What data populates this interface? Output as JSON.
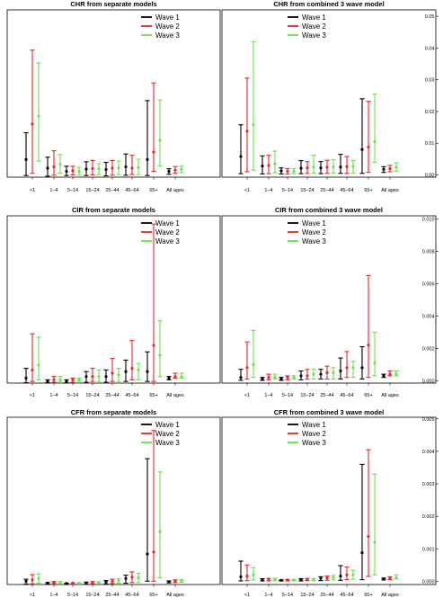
{
  "colors": {
    "wave1": "#000000",
    "wave2": "#e8262b",
    "wave3": "#6ee24a"
  },
  "chart_data": [
    {
      "type": "errorbar",
      "title": "CHR from separate models",
      "categories": [
        "<1",
        "1–4",
        "5–14",
        "15–24",
        "25–44",
        "45–64",
        "65+",
        "All ages"
      ],
      "ylim": [
        0,
        0.052
      ],
      "yticks": [],
      "legend": "top-right",
      "series": [
        {
          "name": "Wave 1",
          "est": [
            0.0055,
            0.0028,
            0.0018,
            0.0025,
            0.0024,
            0.0032,
            0.0055,
            0.0018
          ],
          "lo": [
            0.0005,
            0.0003,
            0.0005,
            0.0005,
            0.0004,
            0.0006,
            0.0005,
            0.0009
          ],
          "hi": [
            0.0138,
            0.0062,
            0.0034,
            0.0048,
            0.0046,
            0.0072,
            0.0238,
            0.0026
          ]
        },
        {
          "name": "Wave 2",
          "est": [
            0.0165,
            0.0032,
            0.002,
            0.0027,
            0.0028,
            0.0028,
            0.0078,
            0.0022
          ],
          "lo": [
            0.0012,
            0.0006,
            0.0007,
            0.0007,
            0.0006,
            0.0008,
            0.0018,
            0.0012
          ],
          "hi": [
            0.0395,
            0.0082,
            0.0034,
            0.0052,
            0.0052,
            0.0068,
            0.0293,
            0.0033
          ]
        },
        {
          "name": "Wave 3",
          "est": [
            0.019,
            0.004,
            0.0018,
            0.0026,
            0.0029,
            0.003,
            0.0115,
            0.0024
          ],
          "lo": [
            0.005,
            0.0012,
            0.0006,
            0.0008,
            0.0008,
            0.0008,
            0.0035,
            0.0014
          ],
          "hi": [
            0.0355,
            0.007,
            0.003,
            0.0042,
            0.005,
            0.0056,
            0.024,
            0.0034
          ]
        }
      ]
    },
    {
      "type": "errorbar",
      "title": "CHR from combined 3 wave model",
      "categories": [
        "<1",
        "1–4",
        "5–14",
        "15–24",
        "25–44",
        "45–64",
        "65+",
        "All ages"
      ],
      "ylim": [
        -0.0007,
        0.052
      ],
      "yticks": [
        "0.00",
        "0.01",
        "0.02",
        "0.03",
        "0.04",
        "0.05"
      ],
      "yticks_values": [
        0.0,
        0.01,
        0.02,
        0.03,
        0.04,
        0.05
      ],
      "legend": "top-left",
      "series": [
        {
          "name": "Wave 1",
          "est": [
            0.0058,
            0.0028,
            0.0013,
            0.0021,
            0.0022,
            0.0025,
            0.008,
            0.0018
          ],
          "lo": [
            0.0004,
            0.0003,
            0.0003,
            0.0004,
            0.0004,
            0.0005,
            0.0005,
            0.0008
          ],
          "hi": [
            0.0158,
            0.006,
            0.0022,
            0.0045,
            0.0042,
            0.0065,
            0.024,
            0.0026
          ]
        },
        {
          "name": "Wave 2",
          "est": [
            0.0138,
            0.003,
            0.0012,
            0.0022,
            0.0024,
            0.0026,
            0.0088,
            0.002
          ],
          "lo": [
            0.001,
            0.0004,
            0.0003,
            0.0005,
            0.0005,
            0.0005,
            0.0008,
            0.001
          ],
          "hi": [
            0.0305,
            0.0062,
            0.002,
            0.0042,
            0.0046,
            0.0058,
            0.0232,
            0.003
          ]
        },
        {
          "name": "Wave 3",
          "est": [
            0.0158,
            0.0035,
            0.0012,
            0.0025,
            0.0025,
            0.0027,
            0.0105,
            0.0024
          ],
          "lo": [
            0.0015,
            0.0007,
            0.0004,
            0.0006,
            0.0006,
            0.0006,
            0.004,
            0.0012
          ],
          "hi": [
            0.042,
            0.0075,
            0.002,
            0.0062,
            0.0048,
            0.0045,
            0.0255,
            0.0038
          ]
        }
      ]
    },
    {
      "type": "errorbar",
      "title": "CIR from separate models",
      "categories": [
        "<1",
        "1–4",
        "5–14",
        "15–24",
        "25–44",
        "45–64",
        "65+",
        "All ages"
      ],
      "ylim": [
        0,
        0.0102
      ],
      "yticks": [],
      "legend": "top-right",
      "series": [
        {
          "name": "Wave 1",
          "est": [
            0.0003,
            0.0001,
            0.0001,
            0.0004,
            0.0004,
            0.0007,
            0.0007,
            0.0003
          ],
          "lo": [
            2e-05,
            2e-05,
            2e-05,
            5e-05,
            5e-05,
            0.0001,
            0.0001,
            0.0002
          ],
          "hi": [
            0.0009,
            0.0002,
            0.0002,
            0.0007,
            0.0008,
            0.0014,
            0.0019,
            0.0004
          ]
        },
        {
          "name": "Wave 2",
          "est": [
            0.0008,
            0.0002,
            0.0002,
            0.0004,
            0.0006,
            0.0009,
            0.0023,
            0.0004
          ],
          "lo": [
            0.0001,
            5e-05,
            5e-05,
            0.0001,
            0.0001,
            0.0002,
            0.0001,
            0.0003
          ],
          "hi": [
            0.003,
            0.0004,
            0.0003,
            0.0009,
            0.0015,
            0.0026,
            0.0097,
            0.0006
          ]
        },
        {
          "name": "Wave 3",
          "est": [
            0.0011,
            0.0002,
            0.0002,
            0.0004,
            0.0005,
            0.0008,
            0.0017,
            0.0004
          ],
          "lo": [
            0.0002,
            0.0001,
            0.0001,
            0.0001,
            0.0001,
            0.0002,
            0.0004,
            0.0003
          ],
          "hi": [
            0.0028,
            0.0004,
            0.0003,
            0.0008,
            0.0009,
            0.0012,
            0.0038,
            0.0006
          ]
        }
      ]
    },
    {
      "type": "errorbar",
      "title": "CIR from combined 3 wave model",
      "categories": [
        "<1",
        "1–4",
        "5–14",
        "15–24",
        "25–44",
        "45–64",
        "65+",
        "All ages"
      ],
      "ylim": [
        -0.00015,
        0.0102
      ],
      "yticks": [
        "0.000",
        "0.002",
        "0.004",
        "0.006",
        "0.008",
        "0.010"
      ],
      "yticks_values": [
        0.0,
        0.002,
        0.004,
        0.006,
        0.008,
        0.01
      ],
      "legend": "top-left",
      "series": [
        {
          "name": "Wave 1",
          "est": [
            0.0002,
            0.0001,
            0.0001,
            0.0003,
            0.0004,
            0.0006,
            0.0008,
            0.0003
          ],
          "lo": [
            2e-05,
            2e-05,
            2e-05,
            5e-05,
            0.0001,
            0.0001,
            0.0001,
            0.0002
          ],
          "hi": [
            0.0007,
            0.0002,
            0.0002,
            0.0006,
            0.0007,
            0.0014,
            0.0021,
            0.0004
          ]
        },
        {
          "name": "Wave 2",
          "est": [
            0.0008,
            0.0002,
            0.0002,
            0.0003,
            0.0005,
            0.0008,
            0.0022,
            0.0004
          ],
          "lo": [
            0.0001,
            5e-05,
            5e-05,
            0.0001,
            0.0001,
            0.0002,
            0.0002,
            0.0003
          ],
          "hi": [
            0.0024,
            0.0004,
            0.0003,
            0.0007,
            0.0009,
            0.0018,
            0.0065,
            0.0006
          ]
        },
        {
          "name": "Wave 3",
          "est": [
            0.001,
            0.0002,
            0.0002,
            0.0004,
            0.0005,
            0.0008,
            0.0011,
            0.0004
          ],
          "lo": [
            0.0002,
            0.0001,
            0.0001,
            0.0001,
            0.0001,
            0.0002,
            0.0003,
            0.0003
          ],
          "hi": [
            0.0031,
            0.0004,
            0.0003,
            0.0007,
            0.0008,
            0.0012,
            0.003,
            0.0006
          ]
        }
      ]
    },
    {
      "type": "errorbar",
      "title": "CFR from separate models",
      "categories": [
        "<1",
        "1–4",
        "5–14",
        "15–24",
        "25–44",
        "45–64",
        "65+",
        "All ages"
      ],
      "ylim": [
        0,
        0.00505
      ],
      "yticks": [],
      "legend": "top-right",
      "series": [
        {
          "name": "Wave 1",
          "est": [
            0.0001,
            4e-05,
            3e-05,
            5e-05,
            8e-05,
            0.00018,
            0.00092,
            8e-05
          ],
          "lo": [
            1e-05,
            1e-05,
            1e-05,
            1e-05,
            2e-05,
            4e-05,
            0.0001,
            5e-05
          ],
          "hi": [
            0.00016,
            6e-05,
            4e-05,
            7e-05,
            0.00012,
            0.00028,
            0.0038,
            0.00011
          ]
        },
        {
          "name": "Wave 2",
          "est": [
            0.00014,
            6e-05,
            4e-05,
            6e-05,
            0.0001,
            0.00022,
            0.00098,
            0.0001
          ],
          "lo": [
            2e-05,
            2e-05,
            1e-05,
            2e-05,
            3e-05,
            6e-05,
            0.0001,
            6e-05
          ],
          "hi": [
            0.0003,
            9e-05,
            5e-05,
            9e-05,
            0.00016,
            0.00038,
            0.00465,
            0.00014
          ]
        },
        {
          "name": "Wave 3",
          "est": [
            0.00018,
            6e-05,
            4e-05,
            6e-05,
            0.00012,
            0.0002,
            0.0016,
            0.00011
          ],
          "lo": [
            4e-05,
            2e-05,
            2e-05,
            2e-05,
            4e-05,
            6e-05,
            0.0002,
            7e-05
          ],
          "hi": [
            0.00032,
            9e-05,
            5e-05,
            8e-05,
            0.00018,
            0.00034,
            0.0034,
            0.00015
          ]
        }
      ]
    },
    {
      "type": "errorbar",
      "title": "CFR from combined 3 wave model",
      "categories": [
        "<1",
        "1–4",
        "5–14",
        "15–24",
        "25–44",
        "45–64",
        "65+",
        "All ages"
      ],
      "ylim": [
        -0.0001,
        0.00505
      ],
      "yticks": [
        "0.000",
        "0.001",
        "0.002",
        "0.003",
        "0.004",
        "0.005"
      ],
      "yticks_values": [
        0.0,
        0.001,
        0.002,
        0.003,
        0.004,
        0.005
      ],
      "legend": "top-left",
      "series": [
        {
          "name": "Wave 1",
          "est": [
            0.00014,
            4e-05,
            3e-05,
            5e-05,
            9e-05,
            0.00016,
            0.00088,
            7e-05
          ],
          "lo": [
            1e-05,
            1e-05,
            1e-05,
            1e-05,
            2e-05,
            3e-05,
            5e-05,
            4e-05
          ],
          "hi": [
            0.00062,
            8e-05,
            4e-05,
            8e-05,
            0.00014,
            0.00048,
            0.0036,
            0.0001
          ]
        },
        {
          "name": "Wave 2",
          "est": [
            0.00016,
            5e-05,
            4e-05,
            5e-05,
            0.0001,
            0.0002,
            0.00138,
            9e-05
          ],
          "lo": [
            2e-05,
            1e-05,
            1e-05,
            2e-05,
            3e-05,
            5e-05,
            0.00015,
            5e-05
          ],
          "hi": [
            0.0005,
            9e-05,
            5e-05,
            9e-05,
            0.00016,
            0.00044,
            0.00405,
            0.00014
          ]
        },
        {
          "name": "Wave 3",
          "est": [
            0.0002,
            5e-05,
            4e-05,
            6e-05,
            0.00011,
            0.0002,
            0.0012,
            0.00011
          ],
          "lo": [
            4e-05,
            2e-05,
            2e-05,
            2e-05,
            4e-05,
            6e-05,
            0.0002,
            7e-05
          ],
          "hi": [
            0.00042,
            9e-05,
            5e-05,
            8e-05,
            0.00018,
            0.00034,
            0.0033,
            0.0002
          ]
        }
      ]
    }
  ]
}
